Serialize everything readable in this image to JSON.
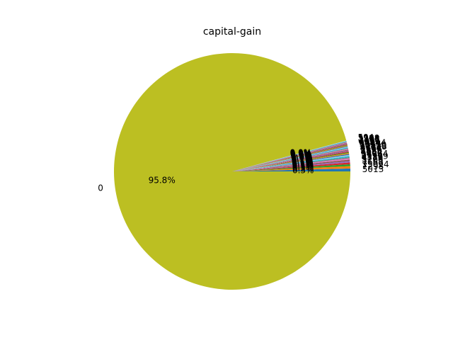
{
  "chart_data": {
    "type": "pie",
    "title": "capital-gain",
    "major_slice": {
      "label": "0",
      "percent_label": "95.8%",
      "value": 95.8,
      "color": "#bcbf22"
    },
    "minor_slice_labels": [
      "5013",
      "7298",
      "15024",
      "7688",
      "3103",
      "5178",
      "4386",
      "99999",
      "2174",
      "14084",
      "4064",
      "4650",
      "3325",
      "2597",
      "8614",
      "4787",
      "27828",
      "10520",
      "13550",
      "3137",
      "6849",
      "14344",
      "4101",
      "1055",
      "3411",
      "2407",
      "2105",
      "2176",
      "3908",
      "594"
    ],
    "minor_slice_pct_labels": [
      "0.3%",
      "0.2%",
      "0.1%",
      "0.1%",
      "0.1%",
      "0.1%",
      "0.1%",
      "0.1%",
      "0.1%",
      "0.1%",
      "0.1%",
      "0.1%",
      "0.1%",
      "0.1%",
      "0.1%",
      "0.1%",
      "0.0%",
      "0.0%",
      "0.0%",
      "0.0%",
      "0.0%",
      "0.0%",
      "0.0%",
      "0.0%",
      "0.0%",
      "0.0%",
      "0.0%",
      "0.0%",
      "0.0%",
      "0.0%"
    ],
    "minor_slice_colors": [
      "#1f77b4",
      "#ff7f0e",
      "#2ca02c",
      "#d62728",
      "#9467bd",
      "#8c564b",
      "#e377c2",
      "#7f7f7f",
      "#17becf",
      "#aec7e8"
    ]
  }
}
